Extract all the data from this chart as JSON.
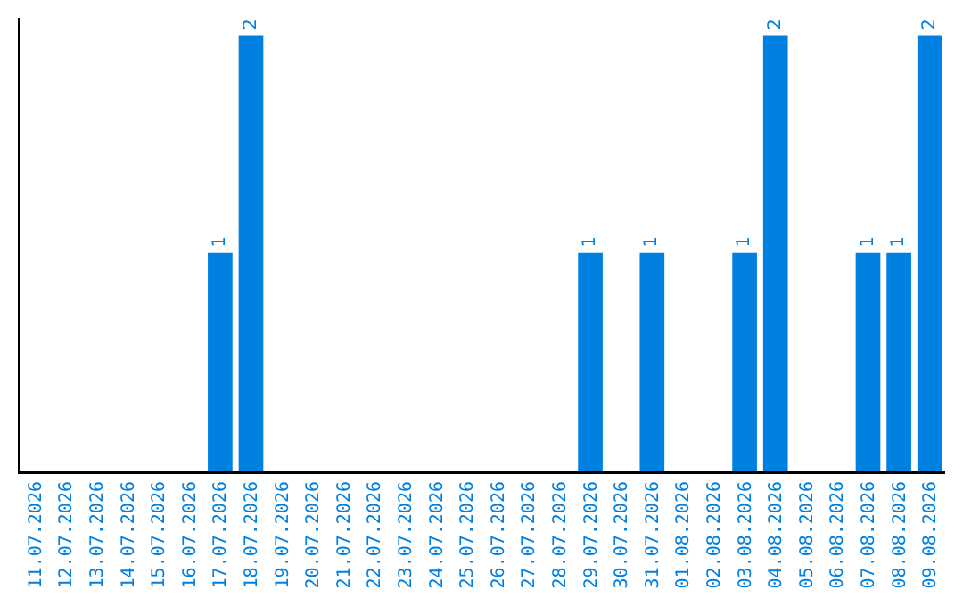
{
  "chart_data": {
    "type": "bar",
    "categories": [
      "11.07.2026",
      "12.07.2026",
      "13.07.2026",
      "14.07.2026",
      "15.07.2026",
      "16.07.2026",
      "17.07.2026",
      "18.07.2026",
      "19.07.2026",
      "20.07.2026",
      "21.07.2026",
      "22.07.2026",
      "23.07.2026",
      "24.07.2026",
      "25.07.2026",
      "26.07.2026",
      "27.07.2026",
      "28.07.2026",
      "29.07.2026",
      "30.07.2026",
      "31.07.2026",
      "01.08.2026",
      "02.08.2026",
      "03.08.2026",
      "04.08.2026",
      "05.08.2026",
      "06.08.2026",
      "07.08.2026",
      "08.08.2026",
      "09.08.2026"
    ],
    "values": [
      0,
      0,
      0,
      0,
      0,
      0,
      1,
      2,
      0,
      0,
      0,
      0,
      0,
      0,
      0,
      0,
      0,
      0,
      1,
      0,
      1,
      0,
      0,
      1,
      2,
      0,
      0,
      1,
      1,
      2
    ],
    "value_labels": [
      null,
      null,
      null,
      null,
      null,
      null,
      "1",
      "2",
      null,
      null,
      null,
      null,
      null,
      null,
      null,
      null,
      null,
      null,
      "1",
      null,
      "1",
      null,
      null,
      "1",
      "2",
      null,
      null,
      "1",
      "1",
      "2"
    ],
    "color": "#0080e0",
    "legend": false,
    "tick_labels": "x"
  }
}
